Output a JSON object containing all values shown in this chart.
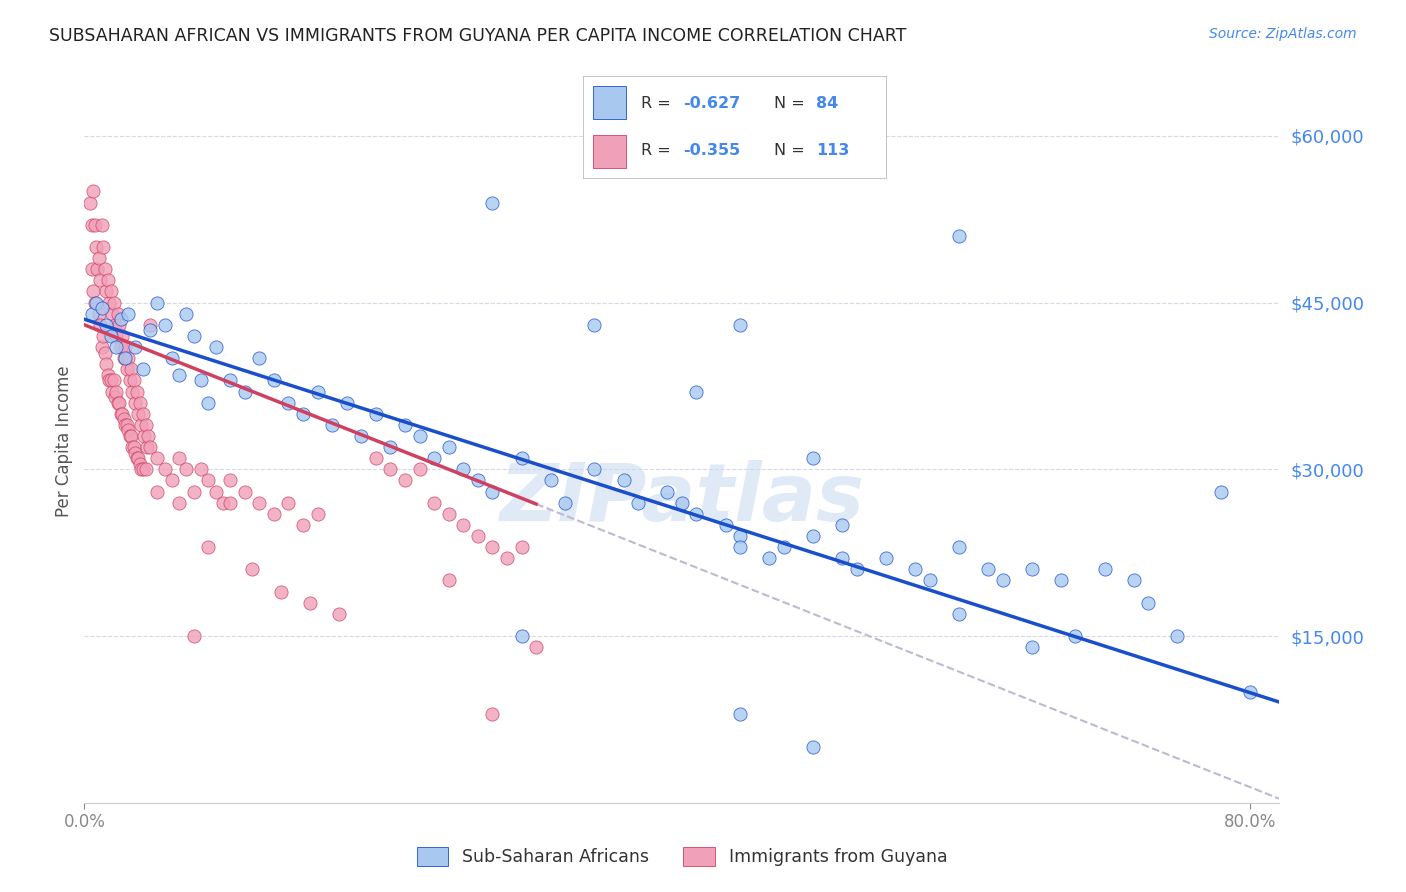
{
  "title": "SUBSAHARAN AFRICAN VS IMMIGRANTS FROM GUYANA PER CAPITA INCOME CORRELATION CHART",
  "source": "Source: ZipAtlas.com",
  "ylabel": "Per Capita Income",
  "ytick_labels": [
    "$60,000",
    "$45,000",
    "$30,000",
    "$15,000"
  ],
  "ytick_values": [
    60000,
    45000,
    30000,
    15000
  ],
  "ymin": 0,
  "ymax": 65000,
  "xmin": 0.0,
  "xmax": 0.82,
  "legend_label_blue": "Sub-Saharan Africans",
  "legend_label_pink": "Immigrants from Guyana",
  "blue_color": "#A8C8F0",
  "pink_color": "#F0A0B8",
  "blue_line_color": "#1A4FCC",
  "pink_line_color": "#D04060",
  "dashed_line_color": "#C0B8D0",
  "watermark": "ZIPatlas",
  "background_color": "#FFFFFF",
  "grid_color": "#D8D8E8",
  "title_color": "#222222",
  "axis_label_color": "#555555",
  "right_axis_color": "#4488EE",
  "blue_intercept": 43500,
  "blue_slope": -42000,
  "pink_intercept": 43000,
  "pink_slope": -52000,
  "blue_points": [
    [
      0.005,
      44000
    ],
    [
      0.008,
      45000
    ],
    [
      0.012,
      44500
    ],
    [
      0.015,
      43000
    ],
    [
      0.018,
      42000
    ],
    [
      0.022,
      41000
    ],
    [
      0.025,
      43500
    ],
    [
      0.028,
      40000
    ],
    [
      0.03,
      44000
    ],
    [
      0.035,
      41000
    ],
    [
      0.04,
      39000
    ],
    [
      0.045,
      42500
    ],
    [
      0.05,
      45000
    ],
    [
      0.055,
      43000
    ],
    [
      0.06,
      40000
    ],
    [
      0.065,
      38500
    ],
    [
      0.07,
      44000
    ],
    [
      0.075,
      42000
    ],
    [
      0.08,
      38000
    ],
    [
      0.085,
      36000
    ],
    [
      0.09,
      41000
    ],
    [
      0.1,
      38000
    ],
    [
      0.11,
      37000
    ],
    [
      0.12,
      40000
    ],
    [
      0.13,
      38000
    ],
    [
      0.14,
      36000
    ],
    [
      0.15,
      35000
    ],
    [
      0.16,
      37000
    ],
    [
      0.17,
      34000
    ],
    [
      0.18,
      36000
    ],
    [
      0.19,
      33000
    ],
    [
      0.2,
      35000
    ],
    [
      0.21,
      32000
    ],
    [
      0.22,
      34000
    ],
    [
      0.23,
      33000
    ],
    [
      0.24,
      31000
    ],
    [
      0.25,
      32000
    ],
    [
      0.26,
      30000
    ],
    [
      0.27,
      29000
    ],
    [
      0.28,
      28000
    ],
    [
      0.3,
      31000
    ],
    [
      0.32,
      29000
    ],
    [
      0.33,
      27000
    ],
    [
      0.35,
      30000
    ],
    [
      0.37,
      29000
    ],
    [
      0.38,
      27000
    ],
    [
      0.4,
      28000
    ],
    [
      0.41,
      27000
    ],
    [
      0.42,
      26000
    ],
    [
      0.44,
      25000
    ],
    [
      0.45,
      24000
    ],
    [
      0.47,
      22000
    ],
    [
      0.48,
      23000
    ],
    [
      0.5,
      24000
    ],
    [
      0.5,
      31000
    ],
    [
      0.52,
      22000
    ],
    [
      0.53,
      21000
    ],
    [
      0.55,
      22000
    ],
    [
      0.57,
      21000
    ],
    [
      0.58,
      20000
    ],
    [
      0.6,
      23000
    ],
    [
      0.6,
      51000
    ],
    [
      0.62,
      21000
    ],
    [
      0.63,
      20000
    ],
    [
      0.65,
      21000
    ],
    [
      0.67,
      20000
    ],
    [
      0.68,
      15000
    ],
    [
      0.7,
      21000
    ],
    [
      0.72,
      20000
    ],
    [
      0.73,
      18000
    ],
    [
      0.75,
      15000
    ],
    [
      0.78,
      28000
    ],
    [
      0.8,
      10000
    ],
    [
      0.28,
      54000
    ],
    [
      0.35,
      43000
    ],
    [
      0.45,
      43000
    ],
    [
      0.45,
      23000
    ],
    [
      0.42,
      37000
    ],
    [
      0.52,
      25000
    ],
    [
      0.6,
      17000
    ],
    [
      0.65,
      14000
    ],
    [
      0.45,
      8000
    ],
    [
      0.5,
      5000
    ],
    [
      0.3,
      15000
    ]
  ],
  "pink_points": [
    [
      0.004,
      54000
    ],
    [
      0.005,
      52000
    ],
    [
      0.006,
      55000
    ],
    [
      0.007,
      52000
    ],
    [
      0.005,
      48000
    ],
    [
      0.006,
      46000
    ],
    [
      0.007,
      45000
    ],
    [
      0.008,
      50000
    ],
    [
      0.009,
      48000
    ],
    [
      0.01,
      49000
    ],
    [
      0.01,
      44000
    ],
    [
      0.011,
      47000
    ],
    [
      0.011,
      43000
    ],
    [
      0.012,
      52000
    ],
    [
      0.012,
      41000
    ],
    [
      0.013,
      50000
    ],
    [
      0.013,
      42000
    ],
    [
      0.014,
      48000
    ],
    [
      0.014,
      40500
    ],
    [
      0.015,
      46000
    ],
    [
      0.015,
      39500
    ],
    [
      0.016,
      47000
    ],
    [
      0.016,
      38500
    ],
    [
      0.017,
      45000
    ],
    [
      0.017,
      38000
    ],
    [
      0.018,
      46000
    ],
    [
      0.018,
      38000
    ],
    [
      0.019,
      44000
    ],
    [
      0.019,
      37000
    ],
    [
      0.02,
      45000
    ],
    [
      0.02,
      38000
    ],
    [
      0.021,
      43000
    ],
    [
      0.021,
      36500
    ],
    [
      0.022,
      42000
    ],
    [
      0.022,
      37000
    ],
    [
      0.023,
      44000
    ],
    [
      0.023,
      36000
    ],
    [
      0.024,
      43000
    ],
    [
      0.024,
      36000
    ],
    [
      0.025,
      41000
    ],
    [
      0.025,
      35000
    ],
    [
      0.026,
      42000
    ],
    [
      0.026,
      35000
    ],
    [
      0.027,
      40000
    ],
    [
      0.027,
      34500
    ],
    [
      0.028,
      41000
    ],
    [
      0.028,
      34000
    ],
    [
      0.029,
      39000
    ],
    [
      0.029,
      34000
    ],
    [
      0.03,
      40000
    ],
    [
      0.03,
      33500
    ],
    [
      0.031,
      38000
    ],
    [
      0.031,
      33000
    ],
    [
      0.032,
      39000
    ],
    [
      0.032,
      33000
    ],
    [
      0.033,
      37000
    ],
    [
      0.033,
      32000
    ],
    [
      0.034,
      38000
    ],
    [
      0.034,
      32000
    ],
    [
      0.035,
      36000
    ],
    [
      0.035,
      31500
    ],
    [
      0.036,
      37000
    ],
    [
      0.036,
      31000
    ],
    [
      0.037,
      35000
    ],
    [
      0.037,
      31000
    ],
    [
      0.038,
      36000
    ],
    [
      0.038,
      30500
    ],
    [
      0.039,
      34000
    ],
    [
      0.039,
      30000
    ],
    [
      0.04,
      35000
    ],
    [
      0.04,
      30000
    ],
    [
      0.041,
      33000
    ],
    [
      0.042,
      34000
    ],
    [
      0.042,
      30000
    ],
    [
      0.043,
      32000
    ],
    [
      0.044,
      33000
    ],
    [
      0.045,
      32000
    ],
    [
      0.045,
      43000
    ],
    [
      0.05,
      31000
    ],
    [
      0.05,
      28000
    ],
    [
      0.055,
      30000
    ],
    [
      0.06,
      29000
    ],
    [
      0.065,
      31000
    ],
    [
      0.065,
      27000
    ],
    [
      0.07,
      30000
    ],
    [
      0.075,
      28000
    ],
    [
      0.075,
      15000
    ],
    [
      0.08,
      30000
    ],
    [
      0.085,
      29000
    ],
    [
      0.085,
      23000
    ],
    [
      0.09,
      28000
    ],
    [
      0.095,
      27000
    ],
    [
      0.1,
      29000
    ],
    [
      0.1,
      27000
    ],
    [
      0.11,
      28000
    ],
    [
      0.115,
      21000
    ],
    [
      0.12,
      27000
    ],
    [
      0.13,
      26000
    ],
    [
      0.135,
      19000
    ],
    [
      0.14,
      27000
    ],
    [
      0.15,
      25000
    ],
    [
      0.155,
      18000
    ],
    [
      0.16,
      26000
    ],
    [
      0.175,
      17000
    ],
    [
      0.2,
      31000
    ],
    [
      0.21,
      30000
    ],
    [
      0.22,
      29000
    ],
    [
      0.23,
      30000
    ],
    [
      0.24,
      27000
    ],
    [
      0.25,
      26000
    ],
    [
      0.25,
      20000
    ],
    [
      0.26,
      25000
    ],
    [
      0.27,
      24000
    ],
    [
      0.28,
      23000
    ],
    [
      0.28,
      8000
    ],
    [
      0.29,
      22000
    ],
    [
      0.3,
      23000
    ],
    [
      0.31,
      14000
    ]
  ]
}
